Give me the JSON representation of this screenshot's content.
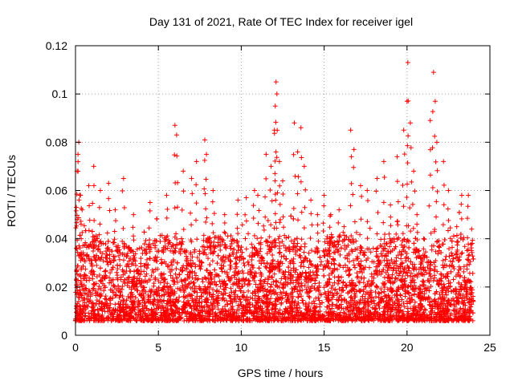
{
  "chart_data": {
    "type": "scatter",
    "title": "Day 131 of 2021, Rate Of TEC Index for receiver igel",
    "xlabel": "GPS time / hours",
    "ylabel": "ROTI / TECUs",
    "xlim": [
      0,
      25
    ],
    "ylim": [
      0,
      0.12
    ],
    "x_ticks": [
      0,
      5,
      10,
      15,
      20,
      25
    ],
    "x_tick_labels": [
      "0",
      "5",
      "10",
      "15",
      "20",
      "25"
    ],
    "y_ticks": [
      0,
      0.02,
      0.04,
      0.06,
      0.08,
      0.1,
      0.12
    ],
    "y_tick_labels": [
      "0",
      "0.02",
      "0.04",
      "0.06",
      "0.08",
      "0.1",
      "0.12"
    ],
    "grid": true,
    "marker": "+",
    "color": "#ff0000",
    "x_range_of_data": [
      0,
      24
    ],
    "series": [
      {
        "name": "ROTI",
        "points": [
          [
            0.05,
            0.053
          ],
          [
            0.1,
            0.068
          ],
          [
            0.15,
            0.075
          ],
          [
            0.2,
            0.08
          ],
          [
            0.3,
            0.058
          ],
          [
            0.4,
            0.052
          ],
          [
            0.8,
            0.062
          ],
          [
            1.1,
            0.07
          ],
          [
            1.5,
            0.06
          ],
          [
            2.0,
            0.063
          ],
          [
            2.4,
            0.052
          ],
          [
            2.9,
            0.065
          ],
          [
            3.5,
            0.05
          ],
          [
            4.5,
            0.055
          ],
          [
            5.5,
            0.058
          ],
          [
            6.0,
            0.087
          ],
          [
            6.1,
            0.083
          ],
          [
            6.5,
            0.068
          ],
          [
            7.0,
            0.065
          ],
          [
            7.3,
            0.072
          ],
          [
            7.8,
            0.081
          ],
          [
            7.9,
            0.075
          ],
          [
            8.3,
            0.06
          ],
          [
            9.0,
            0.05
          ],
          [
            9.8,
            0.056
          ],
          [
            10.3,
            0.057
          ],
          [
            10.8,
            0.06
          ],
          [
            11.0,
            0.058
          ],
          [
            11.5,
            0.075
          ],
          [
            11.8,
            0.07
          ],
          [
            12.0,
            0.085
          ],
          [
            12.05,
            0.095
          ],
          [
            12.1,
            0.105
          ],
          [
            12.15,
            0.1
          ],
          [
            12.3,
            0.072
          ],
          [
            12.5,
            0.064
          ],
          [
            13.2,
            0.088
          ],
          [
            13.4,
            0.076
          ],
          [
            13.6,
            0.086
          ],
          [
            13.8,
            0.07
          ],
          [
            14.2,
            0.056
          ],
          [
            14.6,
            0.05
          ],
          [
            15.0,
            0.058
          ],
          [
            15.4,
            0.05
          ],
          [
            15.9,
            0.052
          ],
          [
            16.2,
            0.045
          ],
          [
            16.6,
            0.085
          ],
          [
            16.8,
            0.077
          ],
          [
            17.2,
            0.062
          ],
          [
            17.6,
            0.06
          ],
          [
            18.2,
            0.065
          ],
          [
            18.6,
            0.072
          ],
          [
            19.0,
            0.054
          ],
          [
            19.4,
            0.074
          ],
          [
            19.8,
            0.085
          ],
          [
            20.0,
            0.097
          ],
          [
            20.05,
            0.113
          ],
          [
            20.2,
            0.088
          ],
          [
            20.4,
            0.068
          ],
          [
            20.6,
            0.05
          ],
          [
            21.0,
            0.04
          ],
          [
            21.4,
            0.089
          ],
          [
            21.6,
            0.109
          ],
          [
            21.7,
            0.097
          ],
          [
            21.8,
            0.08
          ],
          [
            22.2,
            0.072
          ],
          [
            22.5,
            0.06
          ],
          [
            23.0,
            0.045
          ],
          [
            23.3,
            0.058
          ],
          [
            23.7,
            0.058
          ],
          [
            23.9,
            0.044
          ]
        ]
      }
    ]
  }
}
